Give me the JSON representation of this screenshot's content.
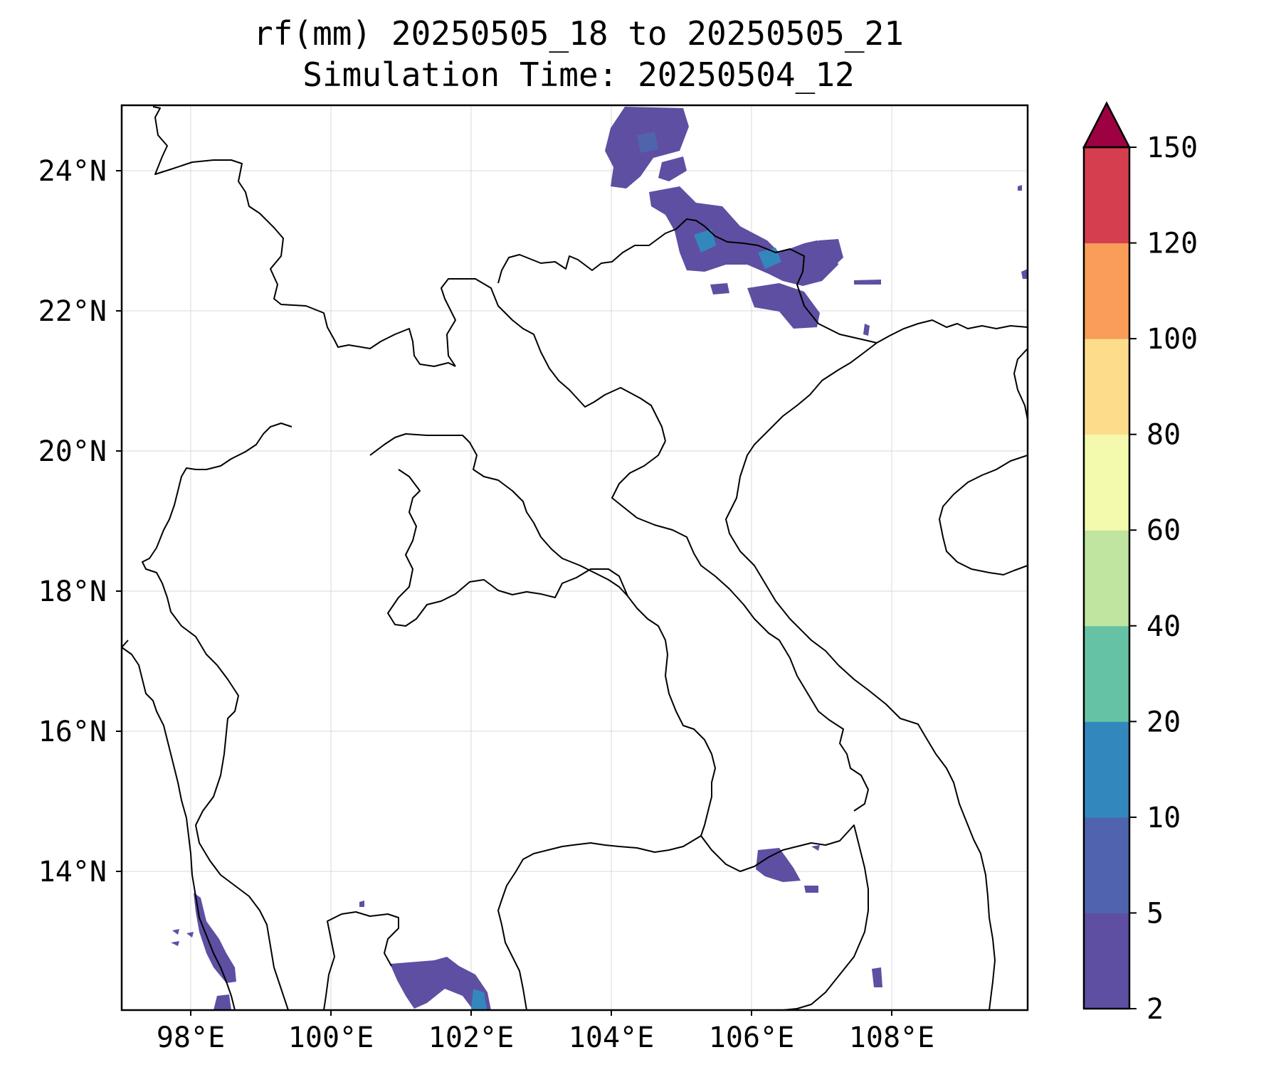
{
  "title": {
    "line1": "rf(mm) 20250505_18 to 20250505_21",
    "line2": "Simulation Time: 20250504_12"
  },
  "map": {
    "lon_ticks": [
      "98°E",
      "100°E",
      "102°E",
      "104°E",
      "106°E",
      "108°E"
    ],
    "lat_ticks": [
      "24°N",
      "22°N",
      "20°N",
      "18°N",
      "16°N",
      "14°N"
    ],
    "lon_range": [
      97.0,
      110.0
    ],
    "lat_range": [
      12.0,
      25.0
    ],
    "gridlines": true
  },
  "colorbar": {
    "levels": [
      "2",
      "5",
      "10",
      "20",
      "40",
      "60",
      "80",
      "100",
      "120",
      "150"
    ],
    "colors": [
      "#5e4fa2",
      "#4f64ad",
      "#3288bd",
      "#66c2a5",
      "#bfe5a0",
      "#f3faad",
      "#fddd8b",
      "#f99d59",
      "#d53e4f",
      "#9e0142"
    ],
    "extend": "max"
  }
}
